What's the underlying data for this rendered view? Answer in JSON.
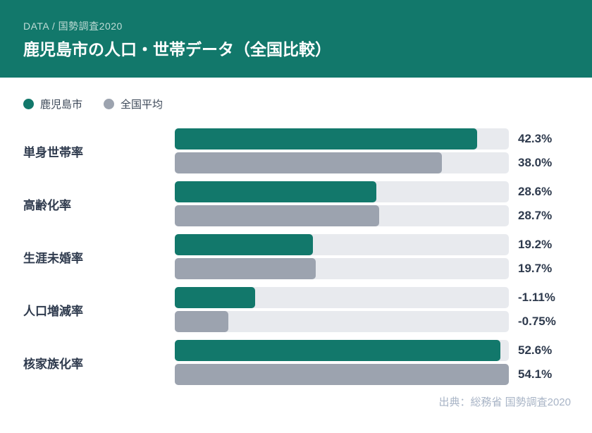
{
  "header": {
    "kicker": "DATA / 国勢調査2020",
    "title": "鹿児島市の人口・世帯データ（全国比較）"
  },
  "legend": {
    "items": [
      {
        "label": "鹿児島市",
        "color": "#12786B"
      },
      {
        "label": "全国平均",
        "color": "#9CA3AF"
      }
    ]
  },
  "colors": {
    "header_bg": "#12786B",
    "accent_teal": "#12786B",
    "national_gray": "#9CA3AF",
    "track_gray": "#E8EAEE",
    "text_dark": "#2E3A4D",
    "kicker_text": "#BFDCD6",
    "source_text": "#A8B4C6"
  },
  "chart_data": {
    "type": "bar",
    "orientation": "horizontal",
    "title": "鹿児島市の人口・世帯データ（全国比較）",
    "categories": [
      "単身世帯率",
      "高齢化率",
      "生涯未婚率",
      "人口増減率",
      "核家族化率"
    ],
    "series": [
      {
        "name": "鹿児島市",
        "values": [
          42.3,
          28.6,
          19.2,
          -1.11,
          52.6
        ],
        "labels": [
          "42.3%",
          "28.6%",
          "19.2%",
          "-1.11%",
          "52.6%"
        ],
        "bar_width_pct": [
          90.5,
          60.3,
          41.4,
          24.0,
          97.5
        ]
      },
      {
        "name": "全国平均",
        "values": [
          38.0,
          28.7,
          19.7,
          -0.75,
          54.1
        ],
        "labels": [
          "38.0%",
          "28.7%",
          "19.7%",
          "-0.75%",
          "54.1%"
        ],
        "bar_width_pct": [
          80.0,
          61.2,
          42.2,
          16.0,
          100.0
        ]
      }
    ],
    "legend_position": "top-left",
    "grid": false,
    "value_labels": "right-of-bar"
  },
  "footer": {
    "source": "出典：総務省 国勢調査2020"
  }
}
